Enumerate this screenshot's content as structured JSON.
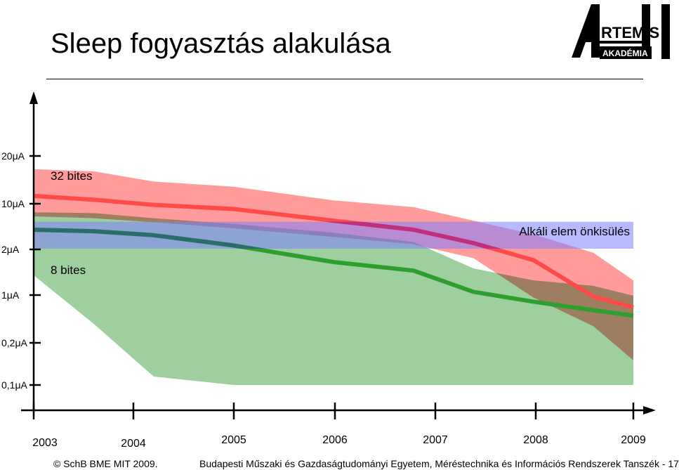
{
  "slide": {
    "title": "Sleep fogyasztás alakulása",
    "footer_left": "© SchB BME MIT  2009.",
    "footer_right": "Budapesti Műszaki és Gazdaságtudományi Egyetem, Méréstechnika és Információs Rendszerek Tanszék - 17",
    "logo": {
      "icon": "artemis-akademia-logo",
      "top_text": "RTEMIS",
      "bottom_text": "AKADÉMIA"
    }
  },
  "chart_data": {
    "type": "area",
    "title": "Sleep fogyasztás alakulása",
    "y_scale": "categorical-log",
    "y_tick_labels": [
      "20μA",
      "10μA",
      "2μA",
      "1μA",
      "0,2μA",
      "0,1μA"
    ],
    "x_tick_labels": [
      "2003",
      "2004",
      "2005",
      "2006",
      "2007",
      "2008",
      "2009"
    ],
    "x_range": [
      2003,
      2009
    ],
    "grid": false,
    "legend": "none",
    "bands": [
      {
        "name": "32 bites",
        "color": "#ff9b9b",
        "x": [
          2003.0,
          2003.6,
          2004.2,
          2005.0,
          2006.0,
          2006.8,
          2007.4,
          2008.0,
          2008.6,
          2009.0
        ],
        "upper_uA": [
          16.5,
          16.0,
          13.8,
          12.8,
          10.5,
          8.9,
          5.5,
          3.4,
          1.9,
          1.25
        ],
        "lower_uA": [
          6.4,
          6.0,
          5.2,
          4.2,
          3.1,
          2.4,
          1.75,
          0.92,
          0.35,
          0.15
        ]
      },
      {
        "name": "8 bites",
        "color": "#9ecf9e",
        "x": [
          2003.0,
          2003.6,
          2004.2,
          2005.0,
          2006.0,
          2006.8,
          2007.4,
          2008.0,
          2008.6,
          2009.0
        ],
        "upper_uA": [
          7.4,
          7.2,
          6.0,
          4.9,
          3.6,
          2.6,
          1.5,
          1.25,
          1.15,
          0.98
        ],
        "lower_uA": [
          1.35,
          0.38,
          0.115,
          0.1,
          0.1,
          0.1,
          0.1,
          0.1,
          0.1,
          0.1
        ]
      },
      {
        "name": "Alkáli elem önkisülés",
        "color": "#8080ff",
        "x": [
          2003,
          2009
        ],
        "upper_uA": [
          5.3,
          5.3
        ],
        "lower_uA": [
          2.05,
          2.05
        ]
      }
    ],
    "series": [
      {
        "name": "32 bites",
        "color": "#ff4a4a",
        "color_in_battery_band": "#c0307a",
        "x": [
          2003.0,
          2003.6,
          2004.2,
          2005.0,
          2006.0,
          2006.8,
          2007.4,
          2008.0,
          2008.6,
          2009.0
        ],
        "y_uA": [
          11.2,
          10.6,
          9.6,
          8.3,
          5.5,
          4.0,
          2.5,
          1.7,
          0.95,
          0.66
        ]
      },
      {
        "name": "8 bites",
        "color": "#2e9e2e",
        "color_in_battery_band": "#2a6e6a",
        "x": [
          2003.0,
          2003.6,
          2004.2,
          2005.0,
          2006.0,
          2006.8,
          2007.4,
          2008.0,
          2008.6,
          2009.0
        ],
        "y_uA": [
          4.0,
          3.8,
          3.3,
          2.3,
          1.65,
          1.45,
          1.05,
          0.8,
          0.6,
          0.5
        ]
      }
    ],
    "annotations": [
      {
        "text": "32 bites",
        "anchor": "upper-left"
      },
      {
        "text": "8 bites",
        "anchor": "left"
      },
      {
        "text": "Alkáli elem önkisülés",
        "anchor": "right"
      }
    ]
  }
}
